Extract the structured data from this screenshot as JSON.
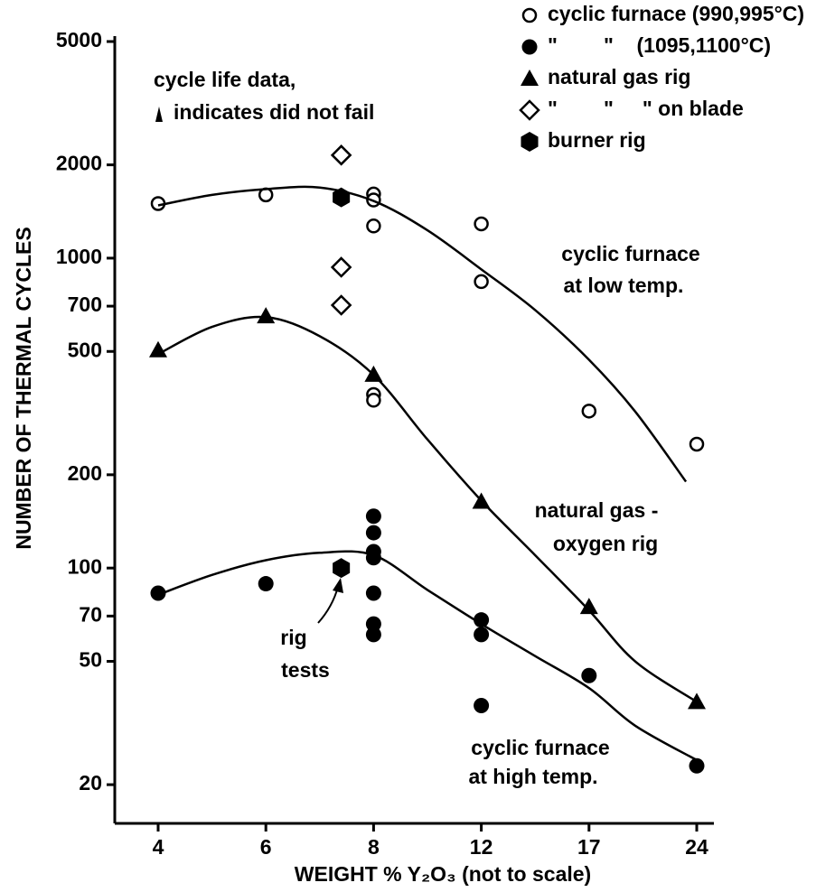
{
  "chart_data": {
    "type": "scatter",
    "x_label": "WEIGHT % Y₂O₃ (not to scale)",
    "y_label": "NUMBER OF THERMAL CYCLES",
    "annotations": [
      [
        "cycle life data,",
        "indicates did not fail"
      ],
      [
        "rig",
        "tests"
      ]
    ],
    "xticks": [
      4,
      6,
      8,
      12,
      17,
      24
    ],
    "xlim": [
      4,
      24
    ],
    "ylim": [
      15,
      5000
    ],
    "yticks": [
      20,
      50,
      70,
      100,
      200,
      500,
      700,
      1000,
      2000,
      5000
    ],
    "log_y": true,
    "legend": "top-right",
    "series": [
      {
        "name": "cyclic furnace (990,995°C)",
        "marker": "open-circle",
        "color": "#000000",
        "x": [
          4,
          6,
          8,
          8,
          8,
          8,
          8,
          12,
          12,
          17,
          24
        ],
        "values": [
          1500,
          1600,
          1610,
          1540,
          1270,
          363,
          348,
          1290,
          840,
          321,
          251
        ]
      },
      {
        "name": "\"        \"    (1095,1100°C)",
        "marker": "circle",
        "color": "#000000",
        "x": [
          4,
          6,
          8,
          8,
          8,
          8,
          8,
          8,
          8,
          12,
          12,
          12,
          17,
          24
        ],
        "values": [
          83,
          89,
          147,
          130,
          113,
          108,
          83,
          66,
          61,
          68,
          61,
          36,
          45,
          23
        ]
      },
      {
        "name": "natural gas rig",
        "marker": "triangle",
        "color": "#000000",
        "x": [
          4,
          6,
          8,
          12,
          17,
          24
        ],
        "values": [
          505,
          650,
          421,
          164,
          75,
          37
        ]
      },
      {
        "name": "\"        \"     \" on blade",
        "marker": "open-diamond",
        "color": "#000000",
        "x": [
          7.4,
          7.4,
          7.4
        ],
        "values": [
          2150,
          935,
          705
        ]
      },
      {
        "name": "burner rig",
        "marker": "hexagon",
        "color": "#000000",
        "x": [
          7.4,
          7.4
        ],
        "values": [
          1570,
          100
        ]
      },
      {
        "name": [
          "cyclic furnace",
          "at low temp."
        ],
        "marker": "line",
        "color": "#000000",
        "x": [
          4,
          5,
          6,
          7,
          8,
          10,
          12,
          14.5,
          17,
          20,
          23.3
        ],
        "values": [
          1480,
          1600,
          1670,
          1690,
          1530,
          1230,
          920,
          680,
          470,
          320,
          190
        ]
      },
      {
        "name": [
          "natural gas -",
          "oxygen rig"
        ],
        "marker": "line",
        "color": "#000000",
        "x": [
          4,
          5,
          6,
          7,
          8,
          10,
          12,
          14.5,
          17,
          20,
          24
        ],
        "values": [
          490,
          600,
          645,
          560,
          420,
          260,
          165,
          110,
          73,
          50,
          37
        ]
      },
      {
        "name": [
          "cyclic furnace",
          "at high temp."
        ],
        "marker": "line",
        "color": "#000000",
        "x": [
          4,
          5,
          6,
          7,
          8,
          10,
          12,
          14.5,
          17,
          20,
          24
        ],
        "values": [
          82,
          95,
          106,
          112,
          110,
          85,
          66,
          52,
          41,
          31,
          24
        ]
      }
    ]
  }
}
